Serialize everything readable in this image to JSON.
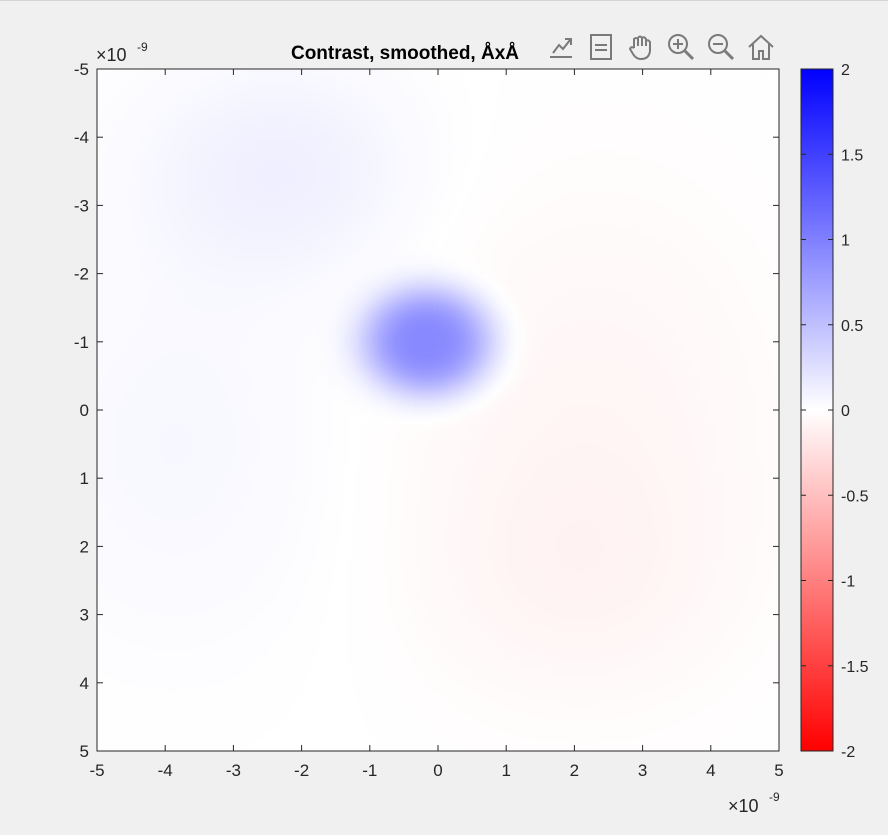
{
  "window": {
    "background": "#f0f0f0"
  },
  "toolbar": {
    "items": [
      {
        "name": "export-icon",
        "label": "Export"
      },
      {
        "name": "datatip-icon",
        "label": "Data Tips"
      },
      {
        "name": "pan-icon",
        "label": "Pan"
      },
      {
        "name": "zoom-in-icon",
        "label": "Zoom In"
      },
      {
        "name": "zoom-out-icon",
        "label": "Zoom Out"
      },
      {
        "name": "home-icon",
        "label": "Restore View"
      }
    ],
    "icon_color": "#7a7a7a"
  },
  "chart_data": {
    "type": "heatmap",
    "title": "Contrast, smoothed, ÅxÅ",
    "xlim": [
      -5e-09,
      5e-09
    ],
    "ylim": [
      -5e-09,
      5e-09
    ],
    "y_reversed": true,
    "x_ticks": [
      "-5",
      "-4",
      "-3",
      "-2",
      "-1",
      "0",
      "1",
      "2",
      "3",
      "4",
      "5"
    ],
    "y_ticks": [
      "-5",
      "-4",
      "-3",
      "-2",
      "-1",
      "0",
      "1",
      "2",
      "3",
      "4",
      "5"
    ],
    "x_exponent": {
      "base": "×10",
      "power": "-9"
    },
    "y_exponent": {
      "base": "×10",
      "power": "-9"
    },
    "clim": [
      -2,
      2
    ],
    "colormap": {
      "low": "#ff0000",
      "mid": "#ffffff",
      "high": "#0000ff"
    },
    "colorbar": {
      "location": "right",
      "ticks": [
        "2",
        "1.5",
        "1",
        "0.5",
        "0",
        "-0.5",
        "-1",
        "-1.5",
        "-2"
      ]
    },
    "features": [
      {
        "kind": "peak",
        "x": -1.5e-10,
        "y": -1e-09,
        "value": 0.95,
        "sigma_x": 9e-10,
        "sigma_y": 7.5e-10
      },
      {
        "kind": "halo",
        "x": -2.3e-09,
        "y": -3.5e-09,
        "value": 0.12,
        "sigma_x": 1.4e-09,
        "sigma_y": 1.1e-09
      },
      {
        "kind": "halo",
        "x": -3.8e-09,
        "y": 5e-10,
        "value": 0.06,
        "sigma_x": 1.6e-09,
        "sigma_y": 2e-09
      },
      {
        "kind": "trough",
        "x": 2.2e-09,
        "y": 2e-10,
        "value": -0.07,
        "sigma_x": 2e-09,
        "sigma_y": 2.5e-09
      },
      {
        "kind": "trough",
        "x": 2e-09,
        "y": 2.5e-09,
        "value": -0.05,
        "sigma_x": 1.5e-09,
        "sigma_y": 1.2e-09
      }
    ]
  }
}
